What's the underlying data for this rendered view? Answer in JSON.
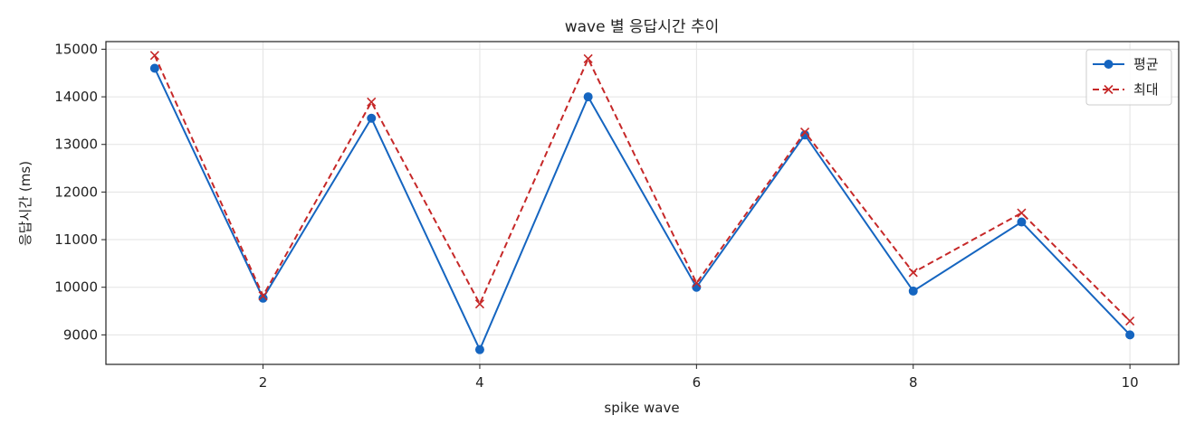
{
  "chart_data": {
    "type": "line",
    "title": "wave 별 응답시간 추이",
    "xlabel": "spike wave",
    "ylabel": "응답시간 (ms)",
    "x": [
      1,
      2,
      3,
      4,
      5,
      6,
      7,
      8,
      9,
      10
    ],
    "xlim": [
      0.55,
      10.45
    ],
    "ylim": [
      8380,
      15160
    ],
    "xticks": [
      2,
      4,
      6,
      8,
      10
    ],
    "yticks": [
      9000,
      10000,
      11000,
      12000,
      13000,
      14000,
      15000
    ],
    "grid": true,
    "legend_position": "top-right",
    "series": [
      {
        "name": "평균",
        "color": "#1565c0",
        "marker": "circle",
        "line": "solid",
        "values": [
          14600,
          9770,
          13550,
          8690,
          14000,
          10000,
          13200,
          9920,
          11370,
          9000
        ]
      },
      {
        "name": "최대",
        "color": "#c62828",
        "marker": "x",
        "line": "dashed",
        "values": [
          14870,
          9820,
          13890,
          9650,
          14800,
          10090,
          13260,
          10310,
          11560,
          9290
        ]
      }
    ]
  }
}
